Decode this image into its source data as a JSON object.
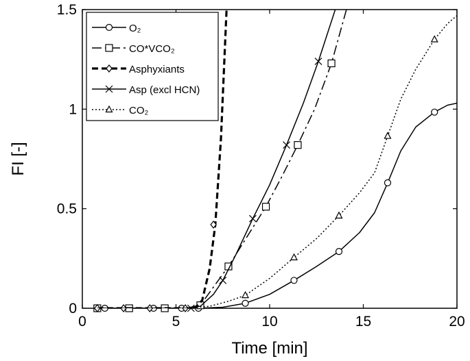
{
  "chart_data": {
    "type": "line",
    "xlabel": "Time [min]",
    "ylabel": "FI [-]",
    "xlim": [
      0,
      20
    ],
    "ylim": [
      0,
      1.5
    ],
    "xticks": [
      0,
      5,
      10,
      15,
      20
    ],
    "yticks": [
      0,
      0.5,
      1,
      1.5
    ],
    "xtick_labels": [
      "0",
      "5",
      "10",
      "15",
      "20"
    ],
    "ytick_labels": [
      "0",
      "0.5",
      "1",
      "1.5"
    ],
    "grid": false,
    "legend_position": "top-left",
    "series": [
      {
        "name": "O₂",
        "marker": "circle",
        "dash": "solid",
        "x": [
          0.7,
          1.2,
          3.8,
          5.3,
          6.2,
          7.5,
          8.7,
          10.0,
          11.3,
          12.5,
          13.7,
          14.8,
          15.6,
          16.3,
          17.0,
          17.8,
          18.8,
          19.5,
          20.0
        ],
        "y": [
          0,
          0,
          0,
          0,
          0,
          0.005,
          0.025,
          0.07,
          0.14,
          0.21,
          0.285,
          0.38,
          0.48,
          0.63,
          0.79,
          0.91,
          0.985,
          1.02,
          1.03
        ],
        "markers_x": [
          1.2,
          3.8,
          5.3,
          6.2,
          8.7,
          11.3,
          13.7,
          16.3,
          18.8
        ],
        "markers_y": [
          0,
          0,
          0,
          0,
          0.025,
          0.14,
          0.285,
          0.63,
          0.985
        ]
      },
      {
        "name": "CO*VCO₂",
        "marker": "square",
        "dash": "dashdot",
        "x": [
          0.8,
          2.5,
          4.4,
          5.5,
          6.3,
          6.8,
          7.8,
          8.8,
          9.8,
          10.7,
          11.5,
          12.4,
          13.3,
          14.1
        ],
        "y": [
          0,
          0,
          0,
          0,
          0.015,
          0.08,
          0.21,
          0.36,
          0.51,
          0.67,
          0.82,
          1.0,
          1.23,
          1.5
        ],
        "markers_x": [
          0.8,
          2.5,
          4.4,
          6.3,
          7.8,
          9.8,
          11.5,
          13.3
        ],
        "markers_y": [
          0,
          0,
          0,
          0.015,
          0.21,
          0.51,
          0.82,
          1.23
        ]
      },
      {
        "name": "Asphyxiants",
        "marker": "diamond",
        "dash": "dashed-bold",
        "x": [
          0.8,
          2.2,
          3.6,
          5.0,
          6.0,
          6.4,
          6.8,
          7.1,
          7.4,
          7.7
        ],
        "y": [
          0,
          0,
          0,
          0,
          0,
          0.04,
          0.2,
          0.42,
          0.85,
          1.5
        ],
        "markers_x": [
          0.8,
          2.2,
          3.6,
          5.5,
          7.0
        ],
        "markers_y": [
          0,
          0,
          0,
          0,
          0.42
        ]
      },
      {
        "name": "Asp (excl HCN)",
        "marker": "x",
        "dash": "solid",
        "x": [
          0.8,
          5.5,
          6.3,
          7.0,
          7.5,
          8.2,
          9.1,
          10.0,
          10.9,
          11.8,
          12.6,
          13.5
        ],
        "y": [
          0,
          0,
          0.01,
          0.07,
          0.14,
          0.27,
          0.45,
          0.62,
          0.82,
          1.03,
          1.24,
          1.5
        ],
        "markers_x": [
          5.8,
          7.5,
          9.1,
          10.9,
          12.6
        ],
        "markers_y": [
          0,
          0.14,
          0.45,
          0.82,
          1.24
        ]
      },
      {
        "name": "CO₂",
        "marker": "triangle",
        "dash": "dotted",
        "x": [
          0.8,
          5.5,
          6.8,
          7.8,
          8.7,
          10.0,
          11.3,
          12.5,
          13.7,
          14.8,
          15.6,
          16.3,
          17.0,
          17.8,
          18.8,
          19.5,
          20.0
        ],
        "y": [
          0,
          0,
          0.01,
          0.035,
          0.065,
          0.15,
          0.255,
          0.35,
          0.465,
          0.58,
          0.68,
          0.865,
          1.05,
          1.2,
          1.35,
          1.43,
          1.47
        ],
        "markers_x": [
          8.7,
          11.3,
          13.7,
          16.3,
          18.8
        ],
        "markers_y": [
          0.065,
          0.255,
          0.465,
          0.865,
          1.35
        ]
      }
    ]
  }
}
